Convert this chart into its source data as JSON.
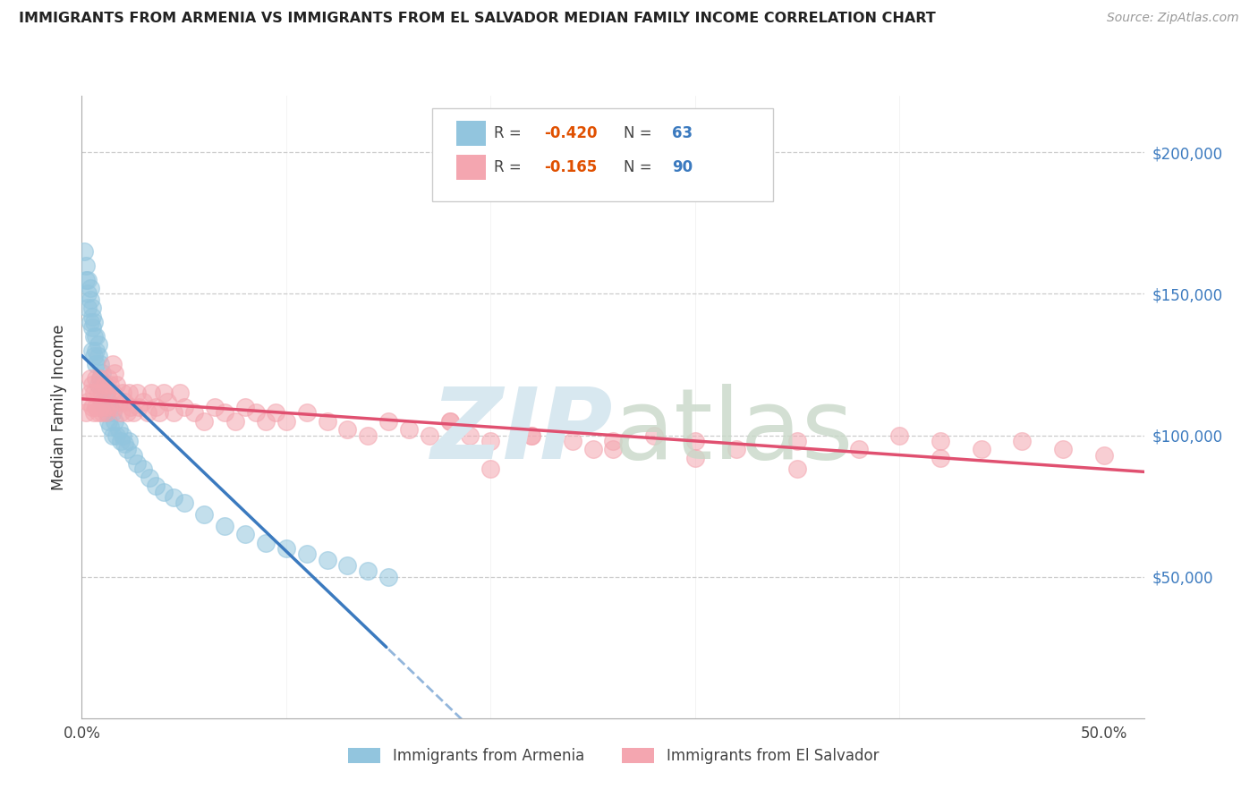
{
  "title": "IMMIGRANTS FROM ARMENIA VS IMMIGRANTS FROM EL SALVADOR MEDIAN FAMILY INCOME CORRELATION CHART",
  "source": "Source: ZipAtlas.com",
  "ylabel": "Median Family Income",
  "yticks": [
    0,
    50000,
    100000,
    150000,
    200000
  ],
  "ytick_labels": [
    "",
    "$50,000",
    "$100,000",
    "$150,000",
    "$200,000"
  ],
  "ylim": [
    0,
    220000
  ],
  "xlim": [
    0.0,
    0.52
  ],
  "armenia_color": "#92c5de",
  "salvador_color": "#f4a6b0",
  "armenia_line_color": "#3b7abf",
  "salvador_line_color": "#e05070",
  "background_color": "#ffffff",
  "armenia_R": "-0.420",
  "armenia_N": "63",
  "salvador_R": "-0.165",
  "salvador_N": "90",
  "armenia_x": [
    0.001,
    0.002,
    0.002,
    0.003,
    0.003,
    0.003,
    0.004,
    0.004,
    0.004,
    0.005,
    0.005,
    0.005,
    0.005,
    0.006,
    0.006,
    0.006,
    0.007,
    0.007,
    0.007,
    0.008,
    0.008,
    0.008,
    0.009,
    0.009,
    0.01,
    0.01,
    0.01,
    0.011,
    0.011,
    0.012,
    0.012,
    0.013,
    0.013,
    0.014,
    0.014,
    0.015,
    0.015,
    0.016,
    0.017,
    0.018,
    0.019,
    0.02,
    0.021,
    0.022,
    0.023,
    0.025,
    0.027,
    0.03,
    0.033,
    0.036,
    0.04,
    0.045,
    0.05,
    0.06,
    0.07,
    0.08,
    0.09,
    0.1,
    0.11,
    0.12,
    0.13,
    0.14,
    0.15
  ],
  "armenia_y": [
    165000,
    155000,
    160000,
    150000,
    155000,
    145000,
    148000,
    152000,
    140000,
    145000,
    138000,
    142000,
    130000,
    140000,
    135000,
    128000,
    135000,
    130000,
    125000,
    132000,
    128000,
    118000,
    125000,
    120000,
    122000,
    118000,
    112000,
    118000,
    110000,
    115000,
    108000,
    112000,
    105000,
    110000,
    103000,
    108000,
    100000,
    105000,
    100000,
    102000,
    98000,
    100000,
    97000,
    95000,
    98000,
    93000,
    90000,
    88000,
    85000,
    82000,
    80000,
    78000,
    76000,
    72000,
    68000,
    65000,
    62000,
    60000,
    58000,
    56000,
    54000,
    52000,
    50000
  ],
  "salvador_x": [
    0.002,
    0.003,
    0.004,
    0.004,
    0.005,
    0.005,
    0.006,
    0.006,
    0.007,
    0.007,
    0.008,
    0.008,
    0.009,
    0.009,
    0.01,
    0.01,
    0.011,
    0.011,
    0.012,
    0.012,
    0.013,
    0.013,
    0.014,
    0.015,
    0.015,
    0.016,
    0.016,
    0.017,
    0.018,
    0.019,
    0.02,
    0.021,
    0.022,
    0.023,
    0.024,
    0.025,
    0.027,
    0.028,
    0.03,
    0.032,
    0.034,
    0.036,
    0.038,
    0.04,
    0.042,
    0.045,
    0.048,
    0.05,
    0.055,
    0.06,
    0.065,
    0.07,
    0.075,
    0.08,
    0.085,
    0.09,
    0.095,
    0.1,
    0.11,
    0.12,
    0.13,
    0.14,
    0.15,
    0.16,
    0.17,
    0.18,
    0.19,
    0.2,
    0.22,
    0.24,
    0.26,
    0.28,
    0.3,
    0.32,
    0.35,
    0.38,
    0.4,
    0.42,
    0.44,
    0.46,
    0.48,
    0.5,
    0.2,
    0.25,
    0.3,
    0.35,
    0.18,
    0.22,
    0.26,
    0.42
  ],
  "salvador_y": [
    108000,
    112000,
    120000,
    115000,
    118000,
    110000,
    108000,
    115000,
    120000,
    110000,
    115000,
    108000,
    120000,
    110000,
    115000,
    108000,
    118000,
    110000,
    115000,
    108000,
    120000,
    110000,
    118000,
    125000,
    115000,
    122000,
    110000,
    118000,
    112000,
    108000,
    115000,
    112000,
    108000,
    115000,
    110000,
    108000,
    115000,
    110000,
    112000,
    108000,
    115000,
    110000,
    108000,
    115000,
    112000,
    108000,
    115000,
    110000,
    108000,
    105000,
    110000,
    108000,
    105000,
    110000,
    108000,
    105000,
    108000,
    105000,
    108000,
    105000,
    102000,
    100000,
    105000,
    102000,
    100000,
    105000,
    100000,
    98000,
    100000,
    98000,
    95000,
    100000,
    98000,
    95000,
    98000,
    95000,
    100000,
    98000,
    95000,
    98000,
    95000,
    93000,
    88000,
    95000,
    92000,
    88000,
    105000,
    100000,
    98000,
    92000
  ]
}
